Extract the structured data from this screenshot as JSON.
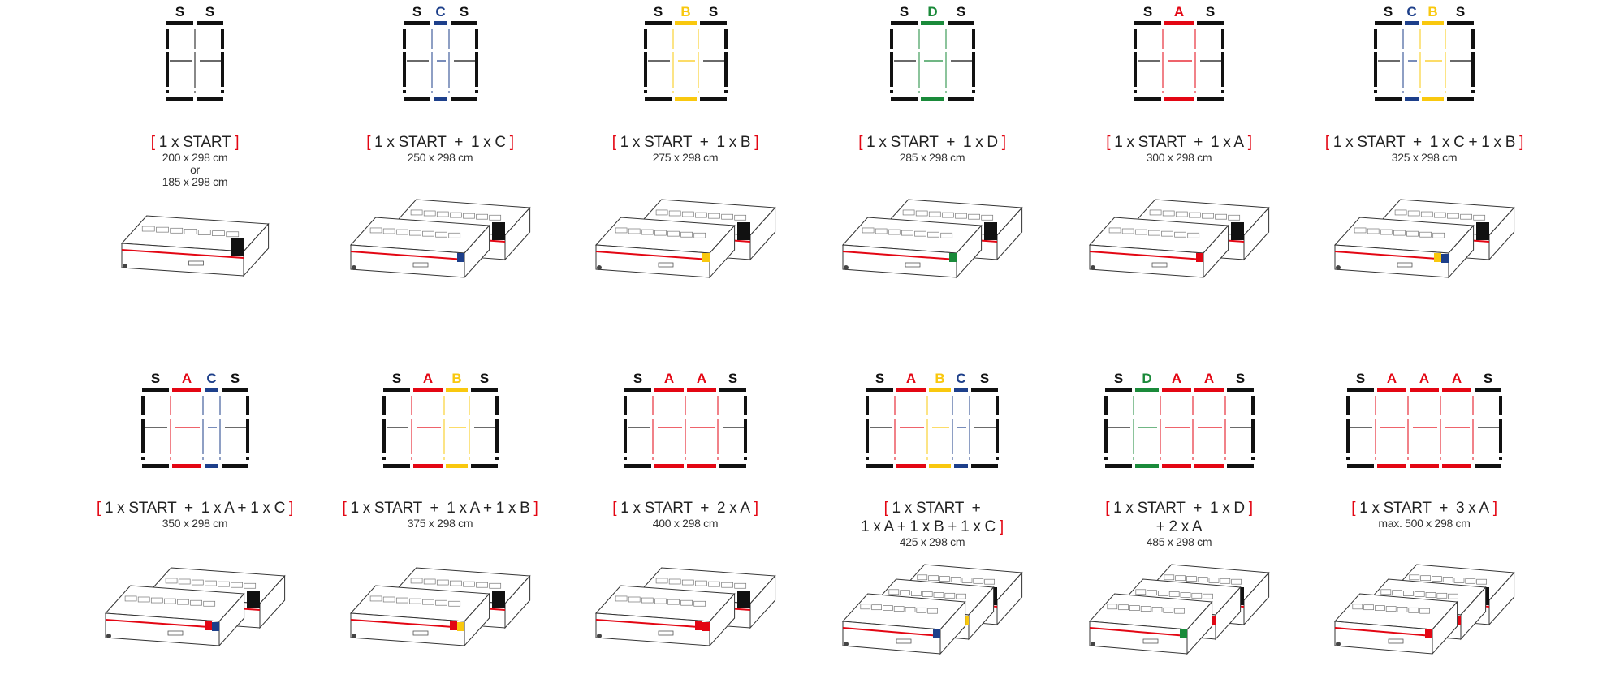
{
  "colors": {
    "S": "#111111",
    "A": "#e30613",
    "B": "#f9c80e",
    "C": "#1d3f8a",
    "D": "#1a8a3a",
    "bracket": "#e30613"
  },
  "brackets": {
    "open": "[",
    "close": "]"
  },
  "items": [
    {
      "modules": [
        "S",
        "S"
      ],
      "label": [
        {
          "text": "1 x START",
          "open": true,
          "close": true
        }
      ],
      "dims": [
        "200 x 298 cm",
        "or",
        "185 x 298 cm"
      ],
      "cases": 1,
      "tags": []
    },
    {
      "modules": [
        "S",
        "C",
        "S"
      ],
      "label": [
        {
          "text": "1 x START  +  1 x C",
          "open": true,
          "close": true
        }
      ],
      "dims": [
        "250 x 298 cm"
      ],
      "cases": 2,
      "tags": [
        "C"
      ]
    },
    {
      "modules": [
        "S",
        "B",
        "S"
      ],
      "label": [
        {
          "text": "1 x START  +  1 x B",
          "open": true,
          "close": true
        }
      ],
      "dims": [
        "275 x 298 cm"
      ],
      "cases": 2,
      "tags": [
        "B"
      ]
    },
    {
      "modules": [
        "S",
        "D",
        "S"
      ],
      "label": [
        {
          "text": "1 x START  +  1 x D",
          "open": true,
          "close": true
        }
      ],
      "dims": [
        "285 x 298 cm"
      ],
      "cases": 2,
      "tags": [
        "D"
      ]
    },
    {
      "modules": [
        "S",
        "A",
        "S"
      ],
      "label": [
        {
          "text": "1 x START  +  1 x A",
          "open": true,
          "close": true
        }
      ],
      "dims": [
        "300 x 298 cm"
      ],
      "cases": 2,
      "tags": [
        "A"
      ]
    },
    {
      "modules": [
        "S",
        "C",
        "B",
        "S"
      ],
      "label": [
        {
          "text": "1 x START  +  1 x C + 1 x B",
          "open": true,
          "close": true
        }
      ],
      "dims": [
        "325 x 298 cm"
      ],
      "cases": 2,
      "tags": [
        "B",
        "C"
      ]
    },
    {
      "modules": [
        "S",
        "A",
        "C",
        "S"
      ],
      "label": [
        {
          "text": "1 x START  +  1 x A + 1 x C",
          "open": true,
          "close": true
        }
      ],
      "dims": [
        "350 x 298 cm"
      ],
      "cases": 2,
      "tags": [
        "A",
        "C"
      ]
    },
    {
      "modules": [
        "S",
        "A",
        "B",
        "S"
      ],
      "label": [
        {
          "text": "1 x START  +  1 x A + 1 x B",
          "open": true,
          "close": true
        }
      ],
      "dims": [
        "375 x 298 cm"
      ],
      "cases": 2,
      "tags": [
        "A",
        "B"
      ]
    },
    {
      "modules": [
        "S",
        "A",
        "A",
        "S"
      ],
      "label": [
        {
          "text": "1 x START  +  2 x A",
          "open": true,
          "close": true
        }
      ],
      "dims": [
        "400 x 298 cm"
      ],
      "cases": 2,
      "tags": [
        "A",
        "A"
      ]
    },
    {
      "modules": [
        "S",
        "A",
        "B",
        "C",
        "S"
      ],
      "label": [
        {
          "text": "1 x START  +",
          "open": true,
          "close": false
        },
        {
          "text": "1 x A + 1 x B + 1 x C",
          "open": false,
          "close": true
        }
      ],
      "dims": [
        "425 x 298 cm"
      ],
      "cases": 3,
      "tags": [
        "C",
        "A",
        "B"
      ]
    },
    {
      "modules": [
        "S",
        "D",
        "A",
        "A",
        "S"
      ],
      "label": [
        {
          "text": "1 x START  +  1 x D",
          "open": true,
          "close": true
        },
        {
          "text": "+ 2 x A",
          "open": false,
          "close": false
        }
      ],
      "dims": [
        "485 x 298 cm"
      ],
      "cases": 3,
      "tags": [
        "D",
        "A",
        "A"
      ]
    },
    {
      "modules": [
        "S",
        "A",
        "A",
        "A",
        "S"
      ],
      "label": [
        {
          "text": "1 x START  +  3 x A",
          "open": true,
          "close": true
        }
      ],
      "dims": [
        "max. 500 x 298 cm"
      ],
      "cases": 3,
      "tags": [
        "A",
        "A",
        "A"
      ]
    }
  ]
}
